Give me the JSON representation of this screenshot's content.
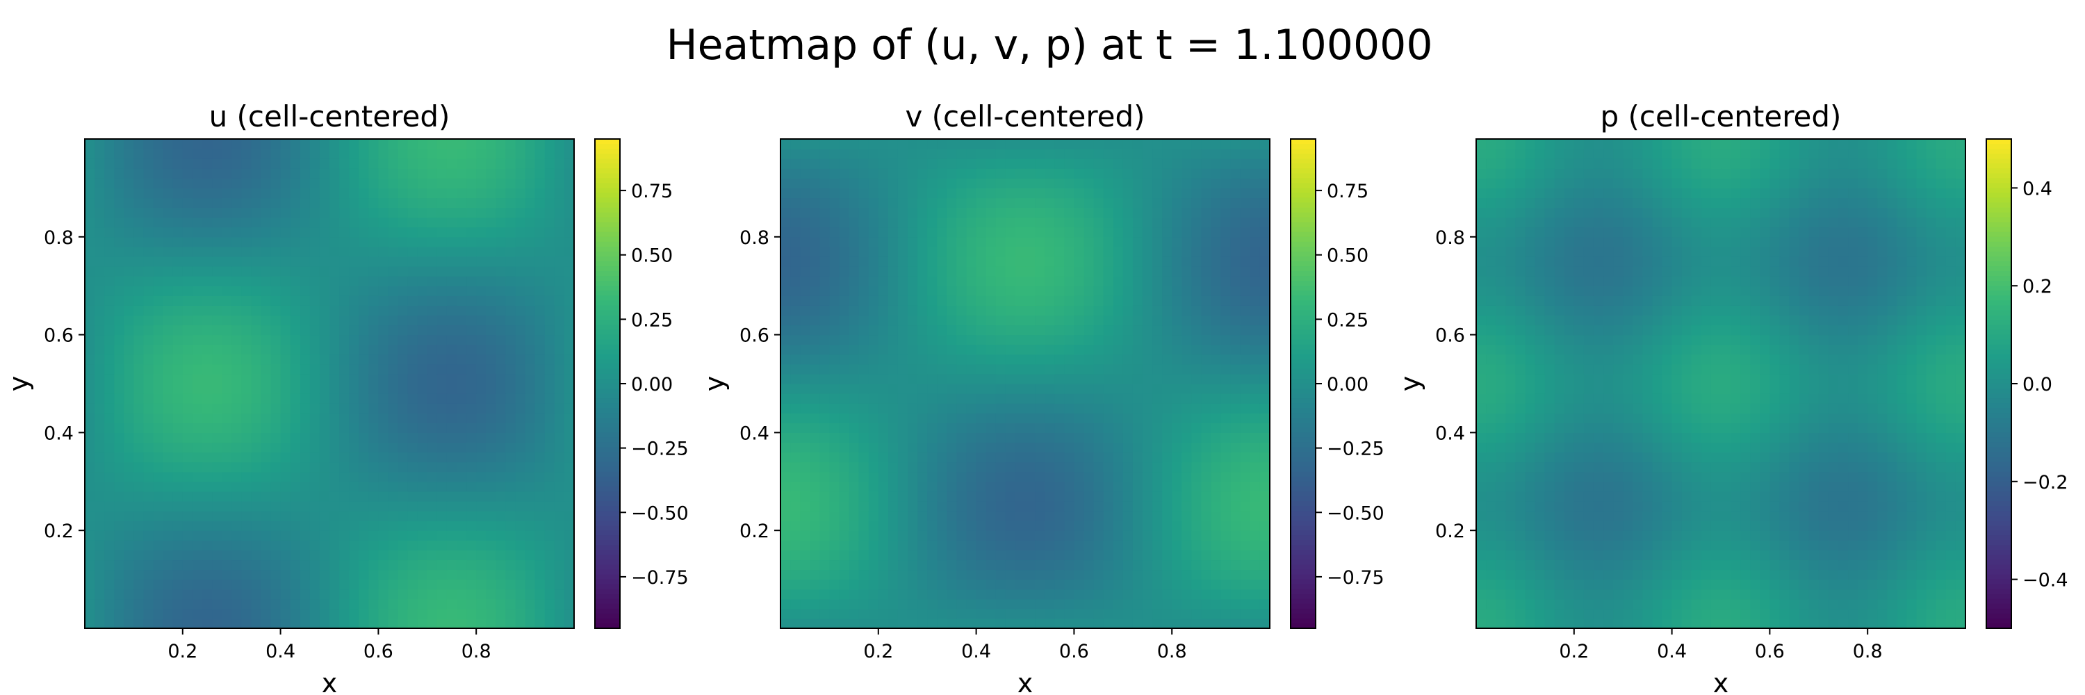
{
  "figure": {
    "title": "Heatmap of (u, v, p) at t = 1.100000"
  },
  "chart_data": [
    {
      "type": "heatmap",
      "title": "u (cell-centered)",
      "xlabel": "x",
      "ylabel": "y",
      "xlim": [
        0,
        1
      ],
      "ylim": [
        0,
        1
      ],
      "x_ticks": [
        "0.2",
        "0.4",
        "0.6",
        "0.8"
      ],
      "y_ticks": [
        "0.2",
        "0.4",
        "0.6",
        "0.8"
      ],
      "field": "u",
      "amplitude": 0.33,
      "colormap": "viridis",
      "colorbar": {
        "range": [
          -0.95,
          0.95
        ],
        "ticks": [
          0.75,
          0.5,
          0.25,
          0.0,
          -0.25,
          -0.5,
          -0.75
        ],
        "tick_labels": [
          "0.75",
          "0.50",
          "0.25",
          "0.00",
          "−0.25",
          "−0.50",
          "−0.75"
        ]
      }
    },
    {
      "type": "heatmap",
      "title": "v (cell-centered)",
      "xlabel": "x",
      "ylabel": "y",
      "xlim": [
        0,
        1
      ],
      "ylim": [
        0,
        1
      ],
      "x_ticks": [
        "0.2",
        "0.4",
        "0.6",
        "0.8"
      ],
      "y_ticks": [
        "0.2",
        "0.4",
        "0.6",
        "0.8"
      ],
      "field": "v",
      "amplitude": 0.33,
      "colormap": "viridis",
      "colorbar": {
        "range": [
          -0.95,
          0.95
        ],
        "ticks": [
          0.75,
          0.5,
          0.25,
          0.0,
          -0.25,
          -0.5,
          -0.75
        ],
        "tick_labels": [
          "0.75",
          "0.50",
          "0.25",
          "0.00",
          "−0.25",
          "−0.50",
          "−0.75"
        ]
      }
    },
    {
      "type": "heatmap",
      "title": "p (cell-centered)",
      "xlabel": "x",
      "ylabel": "y",
      "xlim": [
        0,
        1
      ],
      "ylim": [
        0,
        1
      ],
      "x_ticks": [
        "0.2",
        "0.4",
        "0.6",
        "0.8"
      ],
      "y_ticks": [
        "0.2",
        "0.4",
        "0.6",
        "0.8"
      ],
      "field": "p",
      "amplitude": 0.055,
      "colormap": "viridis",
      "colorbar": {
        "range": [
          -0.5,
          0.5
        ],
        "ticks": [
          0.4,
          0.2,
          0.0,
          -0.2,
          -0.4
        ],
        "tick_labels": [
          "0.4",
          "0.2",
          "0.0",
          "−0.2",
          "−0.4"
        ]
      }
    }
  ]
}
